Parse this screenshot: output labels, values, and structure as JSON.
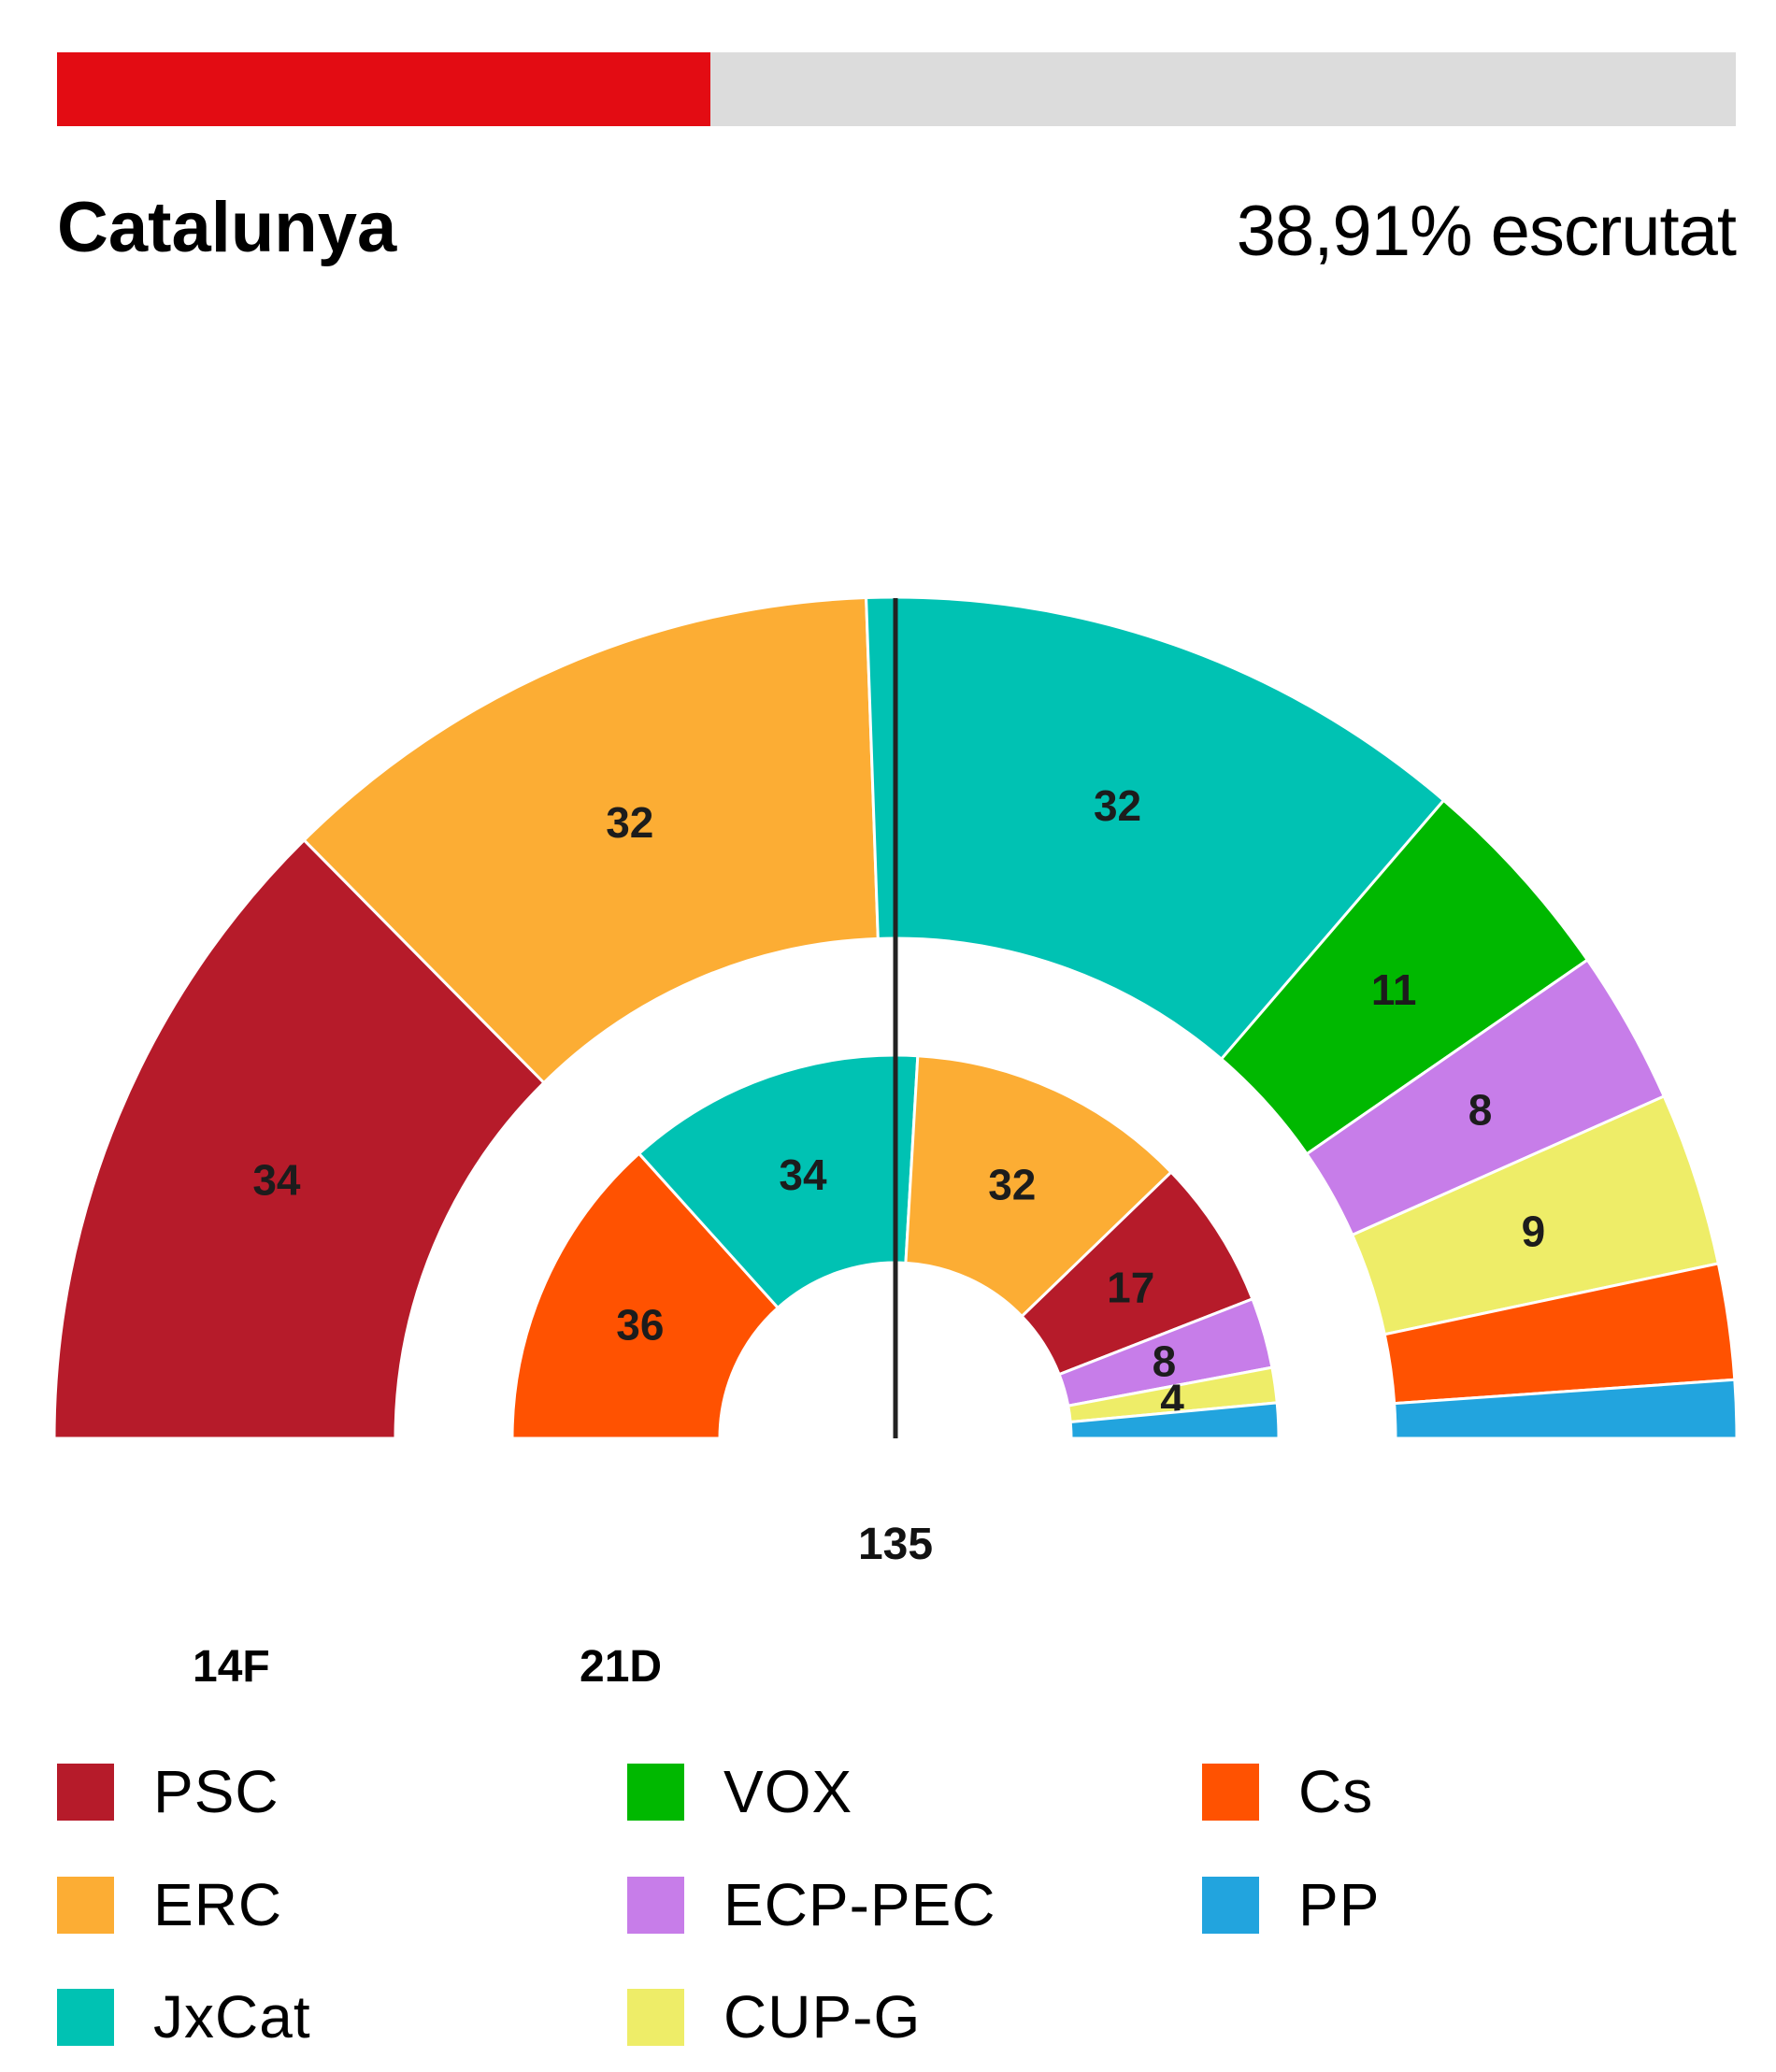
{
  "header": {
    "title": "Catalunya",
    "scrutiny": "38,91% escrutat",
    "scrutiny_fraction": 0.3891,
    "progress_color": "#e30c13",
    "track_color": "#dcdcdc"
  },
  "chart_data": {
    "type": "hemicycle",
    "majority_label": "135",
    "rings": [
      {
        "name": "14F",
        "label": "14F",
        "segments": [
          {
            "party": "PSC",
            "seats": 34,
            "label": "34"
          },
          {
            "party": "ERC",
            "seats": 32,
            "label": "32"
          },
          {
            "party": "JxCat",
            "seats": 32,
            "label": "32"
          },
          {
            "party": "VOX",
            "seats": 11,
            "label": "11"
          },
          {
            "party": "ECP-PEC",
            "seats": 8,
            "label": "8"
          },
          {
            "party": "CUP-G",
            "seats": 9,
            "label": "9"
          },
          {
            "party": "Cs",
            "seats": 6,
            "label": ""
          },
          {
            "party": "PP",
            "seats": 3,
            "label": ""
          }
        ]
      },
      {
        "name": "21D",
        "label": "21D",
        "segments": [
          {
            "party": "Cs",
            "seats": 36,
            "label": "36"
          },
          {
            "party": "JxCat",
            "seats": 34,
            "label": "34"
          },
          {
            "party": "ERC",
            "seats": 32,
            "label": "32"
          },
          {
            "party": "PSC",
            "seats": 17,
            "label": "17"
          },
          {
            "party": "ECP-PEC",
            "seats": 8,
            "label": "8"
          },
          {
            "party": "CUP-G",
            "seats": 4,
            "label": "4"
          },
          {
            "party": "PP",
            "seats": 4,
            "label": ""
          }
        ]
      }
    ],
    "party_colors": {
      "PSC": "#b61b2a",
      "ERC": "#fcad34",
      "JxCat": "#00c2b3",
      "VOX": "#00b800",
      "ECP-PEC": "#c77de9",
      "CUP-G": "#eeed68",
      "Cs": "#ff5201",
      "PP": "#22a4de"
    }
  },
  "legend": {
    "items": [
      {
        "label": "PSC",
        "color": "#b61b2a"
      },
      {
        "label": "ERC",
        "color": "#fcad34"
      },
      {
        "label": "JxCat",
        "color": "#00c2b3"
      },
      {
        "label": "VOX",
        "color": "#00b800"
      },
      {
        "label": "ECP-PEC",
        "color": "#c77de9"
      },
      {
        "label": "CUP-G",
        "color": "#eeed68"
      },
      {
        "label": "Cs",
        "color": "#ff5201"
      },
      {
        "label": "PP",
        "color": "#22a4de"
      }
    ]
  }
}
